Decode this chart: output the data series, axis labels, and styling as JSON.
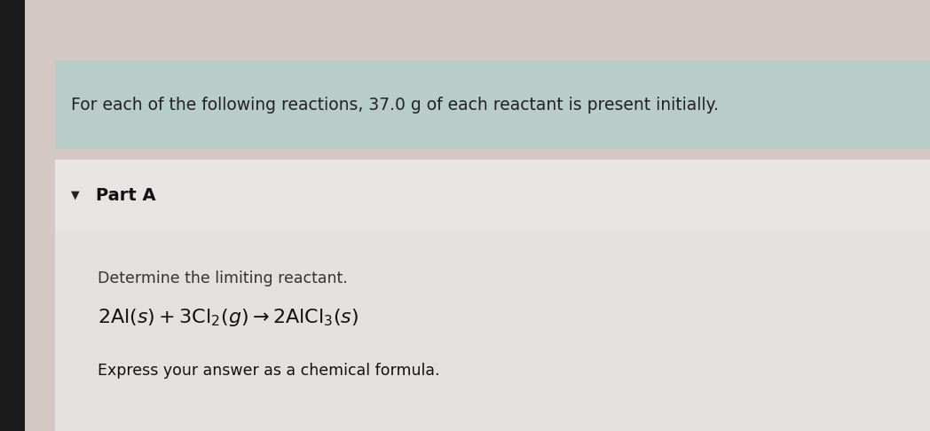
{
  "outer_bg_color": "#d4c8c4",
  "header_bg_color": "#b8cdc8",
  "header_text": "For each of the following reactions, 37.0 g of each reactant is present initially.",
  "part_section_bg_color": "#e8e4e4",
  "part_label": "Part A",
  "body_bg_color": "#e4e0e0",
  "line1": "Determine the limiting reactant.",
  "equation": "$2\\mathrm{Al}(\\mathit{s}) + 3\\mathrm{Cl}_2(\\mathit{g})\\rightarrow 2\\mathrm{AlCl}_3(\\mathit{s})$",
  "line3": "Express your answer as a chemical formula.",
  "header_fontsize": 13.5,
  "part_fontsize": 14,
  "body_fontsize": 12.5,
  "eq_fontsize": 16
}
